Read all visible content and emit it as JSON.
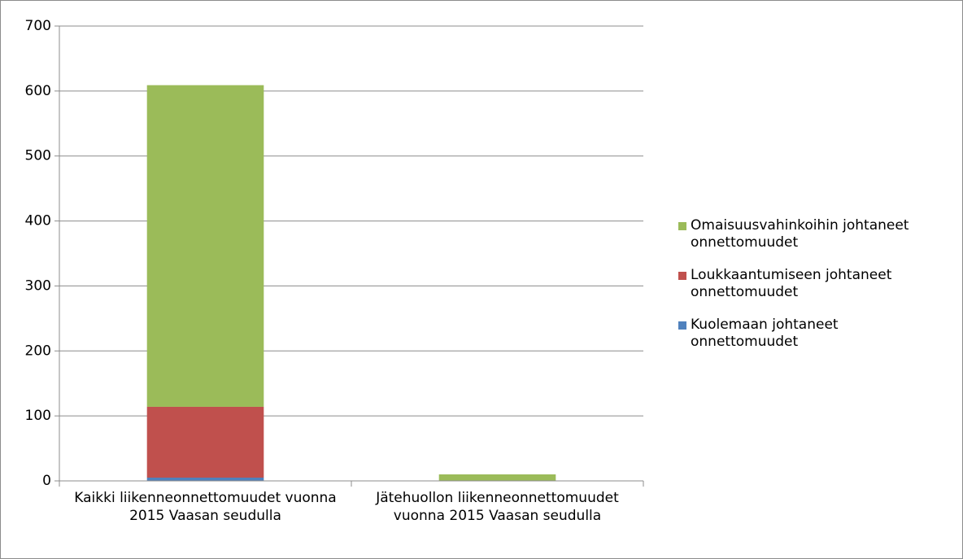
{
  "chart_data": {
    "type": "stacked_bar",
    "categories": [
      "Kaikki liikenneonnettomuudet vuonna 2015 Vaasan seudulla",
      "Jätehuollon liikenneonnettomuudet vuonna 2015 Vaasan seudulla"
    ],
    "series": [
      {
        "name": "Kuolemaan johtaneet onnettomuudet",
        "color": "#4f81bd",
        "values": [
          5,
          0
        ]
      },
      {
        "name": "Loukkaantumiseen johtaneet onnettomuudet",
        "color": "#c0504d",
        "values": [
          109,
          0
        ]
      },
      {
        "name": "Omaisuusvahinkoihin johtaneet onnettomuudet",
        "color": "#9bbb59",
        "values": [
          495,
          10
        ]
      }
    ],
    "ylim": [
      0,
      700
    ],
    "yticks": [
      0,
      100,
      200,
      300,
      400,
      500,
      600,
      700
    ],
    "grid": true,
    "legend": "right"
  }
}
